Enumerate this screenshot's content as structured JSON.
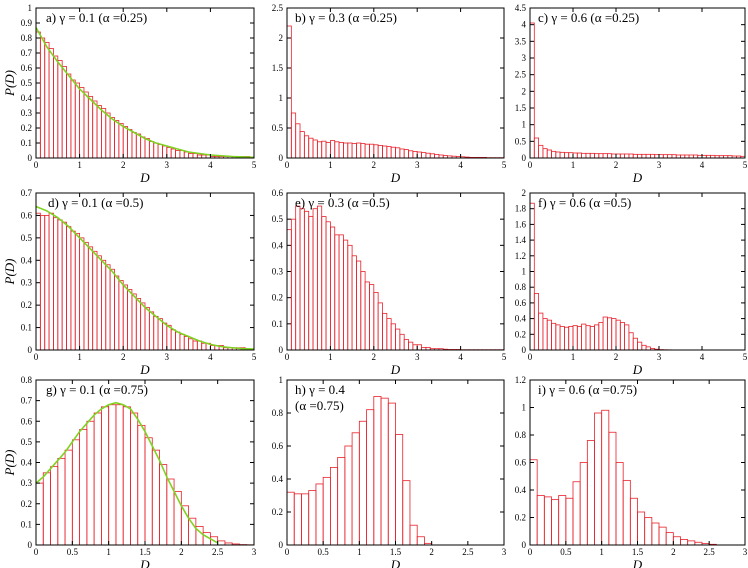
{
  "colors": {
    "bar": "#e8202a",
    "fit": "#7ed321",
    "axis": "#000000"
  },
  "chart_data": [
    {
      "id": "a",
      "type": "bar",
      "annotation": [
        "a) γ = 0.1  (α =0.25)"
      ],
      "xlabel": "D",
      "ylabel": "P(D)",
      "xlim": [
        0,
        5
      ],
      "ylim": [
        0,
        1
      ],
      "xticks": [
        0,
        1,
        2,
        3,
        4,
        5
      ],
      "xtick_labels": [
        "0",
        "1",
        "2",
        "3",
        "4",
        "5"
      ],
      "yticks": [
        0,
        0.1,
        0.2,
        0.3,
        0.4,
        0.5,
        0.6,
        0.7,
        0.8,
        0.9,
        1
      ],
      "ytick_labels": [
        "0",
        "0.1",
        "0.2",
        "0.3",
        "0.4",
        "0.5",
        "0.6",
        "0.7",
        "0.8",
        "0.9",
        "1"
      ],
      "bin_width": 0.1,
      "values": [
        0.84,
        0.8,
        0.77,
        0.73,
        0.68,
        0.65,
        0.61,
        0.56,
        0.52,
        0.5,
        0.47,
        0.44,
        0.41,
        0.38,
        0.35,
        0.33,
        0.3,
        0.27,
        0.25,
        0.23,
        0.21,
        0.19,
        0.17,
        0.16,
        0.14,
        0.13,
        0.11,
        0.1,
        0.09,
        0.08,
        0.07,
        0.06,
        0.05,
        0.05,
        0.04,
        0.03,
        0.03,
        0.02,
        0.02,
        0.02,
        0.01,
        0.01,
        0.01,
        0.01,
        0.01,
        0.01,
        0.01,
        0.01,
        0.01,
        0.005
      ],
      "fit": {
        "x": [
          0,
          0.25,
          0.5,
          0.75,
          1,
          1.25,
          1.5,
          1.75,
          2,
          2.25,
          2.5,
          2.75,
          3,
          3.25,
          3.5,
          3.75,
          4,
          4.25,
          4.5,
          4.75,
          5
        ],
        "y": [
          0.87,
          0.74,
          0.64,
          0.55,
          0.46,
          0.39,
          0.32,
          0.26,
          0.21,
          0.17,
          0.13,
          0.1,
          0.08,
          0.06,
          0.04,
          0.03,
          0.02,
          0.015,
          0.01,
          0.007,
          0.005
        ]
      }
    },
    {
      "id": "b",
      "type": "bar",
      "annotation": [
        "b) γ = 0.3  (α =0.25)"
      ],
      "xlabel": "D",
      "ylabel": "",
      "xlim": [
        0,
        5
      ],
      "ylim": [
        0,
        2.5
      ],
      "xticks": [
        0,
        1,
        2,
        3,
        4,
        5
      ],
      "xtick_labels": [
        "0",
        "1",
        "2",
        "3",
        "4",
        "5"
      ],
      "yticks": [
        0,
        0.5,
        1,
        1.5,
        2,
        2.5
      ],
      "ytick_labels": [
        "0",
        "0.5",
        "1",
        "1.5",
        "2",
        "2.5"
      ],
      "bin_width": 0.1,
      "values": [
        2.2,
        0.75,
        0.57,
        0.44,
        0.37,
        0.33,
        0.3,
        0.27,
        0.28,
        0.26,
        0.29,
        0.27,
        0.26,
        0.25,
        0.25,
        0.24,
        0.25,
        0.24,
        0.23,
        0.23,
        0.22,
        0.21,
        0.2,
        0.19,
        0.18,
        0.17,
        0.15,
        0.14,
        0.12,
        0.11,
        0.1,
        0.09,
        0.08,
        0.07,
        0.06,
        0.05,
        0.04,
        0.035,
        0.03,
        0.025,
        0.02,
        0.015,
        0.01,
        0.01,
        0.01,
        0.01,
        0.005,
        0.005,
        0.005,
        0.005
      ]
    },
    {
      "id": "c",
      "type": "bar",
      "annotation": [
        "c) γ = 0.6  (α =0.25)"
      ],
      "xlabel": "D",
      "ylabel": "",
      "xlim": [
        0,
        5
      ],
      "ylim": [
        0,
        4.5
      ],
      "xticks": [
        0,
        1,
        2,
        3,
        4,
        5
      ],
      "xtick_labels": [
        "0",
        "1",
        "2",
        "3",
        "4",
        "5"
      ],
      "yticks": [
        0,
        0.5,
        1,
        1.5,
        2,
        2.5,
        3,
        3.5,
        4,
        4.5
      ],
      "ytick_labels": [
        "0",
        "0.5",
        "1",
        "1.5",
        "2",
        "2.5",
        "3",
        "3.5",
        "4",
        "4.5"
      ],
      "bin_width": 0.1,
      "values": [
        4.05,
        0.6,
        0.38,
        0.28,
        0.24,
        0.2,
        0.18,
        0.17,
        0.16,
        0.16,
        0.15,
        0.15,
        0.14,
        0.14,
        0.14,
        0.13,
        0.13,
        0.13,
        0.13,
        0.12,
        0.12,
        0.12,
        0.12,
        0.12,
        0.11,
        0.11,
        0.11,
        0.11,
        0.11,
        0.1,
        0.1,
        0.1,
        0.1,
        0.1,
        0.09,
        0.09,
        0.09,
        0.09,
        0.09,
        0.08,
        0.08,
        0.08,
        0.08,
        0.07,
        0.07,
        0.07,
        0.07,
        0.06,
        0.06,
        0.05
      ]
    },
    {
      "id": "d",
      "type": "bar",
      "annotation": [
        "d) γ = 0.1  (α =0.5)"
      ],
      "xlabel": "D",
      "ylabel": "P(D)",
      "xlim": [
        0,
        5
      ],
      "ylim": [
        0,
        0.7
      ],
      "xticks": [
        0,
        1,
        2,
        3,
        4,
        5
      ],
      "xtick_labels": [
        "0",
        "1",
        "2",
        "3",
        "4",
        "5"
      ],
      "yticks": [
        0,
        0.1,
        0.2,
        0.3,
        0.4,
        0.5,
        0.6,
        0.7
      ],
      "ytick_labels": [
        "0",
        "0.1",
        "0.2",
        "0.3",
        "0.4",
        "0.5",
        "0.6",
        "0.7"
      ],
      "bin_width": 0.1,
      "values": [
        0.61,
        0.6,
        0.6,
        0.61,
        0.59,
        0.58,
        0.57,
        0.55,
        0.53,
        0.52,
        0.5,
        0.48,
        0.46,
        0.44,
        0.42,
        0.4,
        0.38,
        0.36,
        0.33,
        0.31,
        0.29,
        0.27,
        0.25,
        0.23,
        0.21,
        0.19,
        0.17,
        0.15,
        0.14,
        0.12,
        0.11,
        0.09,
        0.08,
        0.07,
        0.06,
        0.05,
        0.04,
        0.04,
        0.03,
        0.03,
        0.02,
        0.02,
        0.02,
        0.01,
        0.01,
        0.01,
        0.01,
        0.01,
        0.005,
        0.005
      ],
      "fit": {
        "x": [
          0,
          0.25,
          0.5,
          0.75,
          1,
          1.25,
          1.5,
          1.75,
          2,
          2.25,
          2.5,
          2.75,
          3,
          3.25,
          3.5,
          3.75,
          4,
          4.25,
          4.5,
          4.75,
          5
        ],
        "y": [
          0.64,
          0.62,
          0.59,
          0.55,
          0.5,
          0.45,
          0.4,
          0.35,
          0.29,
          0.24,
          0.19,
          0.15,
          0.11,
          0.08,
          0.06,
          0.04,
          0.025,
          0.015,
          0.01,
          0.006,
          0.004
        ]
      }
    },
    {
      "id": "e",
      "type": "bar",
      "annotation": [
        "e) γ = 0.3  (α =0.5)"
      ],
      "xlabel": "D",
      "ylabel": "",
      "xlim": [
        0,
        5
      ],
      "ylim": [
        0,
        0.6
      ],
      "xticks": [
        0,
        1,
        2,
        3,
        4,
        5
      ],
      "xtick_labels": [
        "0",
        "1",
        "2",
        "3",
        "4",
        "5"
      ],
      "yticks": [
        0,
        0.1,
        0.2,
        0.3,
        0.4,
        0.5,
        0.6
      ],
      "ytick_labels": [
        "0",
        "0.1",
        "0.2",
        "0.3",
        "0.4",
        "0.5",
        "0.6"
      ],
      "bin_width": 0.1,
      "values": [
        0.46,
        0.5,
        0.55,
        0.54,
        0.53,
        0.51,
        0.54,
        0.55,
        0.51,
        0.49,
        0.47,
        0.44,
        0.44,
        0.42,
        0.4,
        0.36,
        0.34,
        0.3,
        0.26,
        0.25,
        0.22,
        0.18,
        0.14,
        0.12,
        0.1,
        0.08,
        0.06,
        0.04,
        0.03,
        0.02,
        0.02,
        0.01,
        0.01,
        0.005,
        0.005,
        0.005,
        0.003,
        0.002,
        0.002,
        0.002,
        0.001,
        0.001,
        0.001,
        0.001,
        0.001,
        0.001,
        0.001,
        0.001,
        0.001,
        0.001
      ]
    },
    {
      "id": "f",
      "type": "bar",
      "annotation": [
        "f) γ = 0.6  (α =0.5)"
      ],
      "xlabel": "D",
      "ylabel": "",
      "xlim": [
        0,
        5
      ],
      "ylim": [
        0,
        2
      ],
      "xticks": [
        0,
        1,
        2,
        3,
        4,
        5
      ],
      "xtick_labels": [
        "0",
        "1",
        "2",
        "3",
        "4",
        "5"
      ],
      "yticks": [
        0,
        0.2,
        0.4,
        0.6,
        0.8,
        1,
        1.2,
        1.4,
        1.6,
        1.8,
        2
      ],
      "ytick_labels": [
        "0",
        "0.2",
        "0.4",
        "0.6",
        "0.8",
        "1",
        "1.2",
        "1.4",
        "1.6",
        "1.8",
        "2"
      ],
      "bin_width": 0.1,
      "values": [
        1.87,
        0.72,
        0.47,
        0.4,
        0.38,
        0.34,
        0.32,
        0.3,
        0.29,
        0.3,
        0.31,
        0.3,
        0.33,
        0.31,
        0.3,
        0.32,
        0.35,
        0.42,
        0.41,
        0.4,
        0.38,
        0.35,
        0.32,
        0.22,
        0.15,
        0.1,
        0.06,
        0.04,
        0.02,
        0.01,
        0.005,
        0.003,
        0.002,
        0.001,
        0.001,
        0.001,
        0.001,
        0.001,
        0.001,
        0.001,
        0.001,
        0.001,
        0.001,
        0.001,
        0.001,
        0.001,
        0.001,
        0.001,
        0.001,
        0.001
      ]
    },
    {
      "id": "g",
      "type": "bar",
      "annotation": [
        "g) γ = 0.1 (α =0.75)"
      ],
      "xlabel": "D",
      "ylabel": "P(D)",
      "xlim": [
        0,
        3
      ],
      "ylim": [
        0,
        0.8
      ],
      "xticks": [
        0,
        0.5,
        1,
        1.5,
        2,
        2.5,
        3
      ],
      "xtick_labels": [
        "0",
        "0.5",
        "1",
        "1.5",
        "2",
        "2.5",
        "3"
      ],
      "yticks": [
        0,
        0.1,
        0.2,
        0.3,
        0.4,
        0.5,
        0.6,
        0.7,
        0.8
      ],
      "ytick_labels": [
        "0",
        "0.1",
        "0.2",
        "0.3",
        "0.4",
        "0.5",
        "0.6",
        "0.7",
        "0.8"
      ],
      "bin_width": 0.1,
      "values": [
        0.3,
        0.35,
        0.38,
        0.42,
        0.46,
        0.51,
        0.56,
        0.6,
        0.64,
        0.67,
        0.68,
        0.68,
        0.67,
        0.64,
        0.58,
        0.52,
        0.46,
        0.39,
        0.32,
        0.26,
        0.19,
        0.13,
        0.09,
        0.06,
        0.04,
        0.02,
        0.01,
        0.005,
        0.002,
        0.001
      ],
      "fit": {
        "x": [
          0,
          0.1,
          0.2,
          0.3,
          0.4,
          0.5,
          0.6,
          0.7,
          0.8,
          0.9,
          1,
          1.1,
          1.2,
          1.3,
          1.4,
          1.5,
          1.6,
          1.7,
          1.8,
          1.9,
          2,
          2.1,
          2.2,
          2.3,
          2.4,
          2.5
        ],
        "y": [
          0.3,
          0.33,
          0.37,
          0.41,
          0.45,
          0.5,
          0.55,
          0.59,
          0.63,
          0.66,
          0.68,
          0.69,
          0.68,
          0.66,
          0.61,
          0.55,
          0.48,
          0.41,
          0.33,
          0.26,
          0.19,
          0.13,
          0.08,
          0.05,
          0.03,
          0.01
        ]
      }
    },
    {
      "id": "h",
      "type": "bar",
      "annotation": [
        "h) γ = 0.4",
        "(α =0.75)"
      ],
      "xlabel": "D",
      "ylabel": "",
      "xlim": [
        0,
        3
      ],
      "ylim": [
        0,
        1
      ],
      "xticks": [
        0,
        0.5,
        1,
        1.5,
        2,
        2.5,
        3
      ],
      "xtick_labels": [
        "0",
        "0.5",
        "1",
        "1.5",
        "2",
        "2.5",
        "3"
      ],
      "yticks": [
        0,
        0.2,
        0.4,
        0.6,
        0.8,
        1
      ],
      "ytick_labels": [
        "0",
        "0.2",
        "0.4",
        "0.6",
        "0.8",
        "1"
      ],
      "bin_width": 0.1,
      "values": [
        0.32,
        0.31,
        0.31,
        0.33,
        0.37,
        0.41,
        0.47,
        0.53,
        0.6,
        0.68,
        0.75,
        0.82,
        0.9,
        0.89,
        0.86,
        0.67,
        0.39,
        0.12,
        0.05,
        0.01,
        0,
        0,
        0,
        0,
        0,
        0,
        0,
        0,
        0,
        0
      ]
    },
    {
      "id": "i",
      "type": "bar",
      "annotation": [
        "i) γ = 0.6  (α =0.75)"
      ],
      "xlabel": "D",
      "ylabel": "",
      "xlim": [
        0,
        3
      ],
      "ylim": [
        0,
        1.2
      ],
      "xticks": [
        0,
        0.5,
        1,
        1.5,
        2,
        2.5,
        3
      ],
      "xtick_labels": [
        "0",
        "0.5",
        "1",
        "1.5",
        "2",
        "2.5",
        "3"
      ],
      "yticks": [
        0,
        0.2,
        0.4,
        0.6,
        0.8,
        1,
        1.2
      ],
      "ytick_labels": [
        "0",
        "0.2",
        "0.4",
        "0.6",
        "0.8",
        "1",
        "1.2"
      ],
      "bin_width": 0.1,
      "values": [
        0.62,
        0.36,
        0.35,
        0.33,
        0.36,
        0.34,
        0.46,
        0.6,
        0.76,
        0.96,
        0.98,
        0.82,
        0.6,
        0.47,
        0.34,
        0.24,
        0.2,
        0.16,
        0.13,
        0.09,
        0.06,
        0.04,
        0.03,
        0.02,
        0.01,
        0.005,
        0,
        0,
        0,
        0
      ]
    }
  ]
}
